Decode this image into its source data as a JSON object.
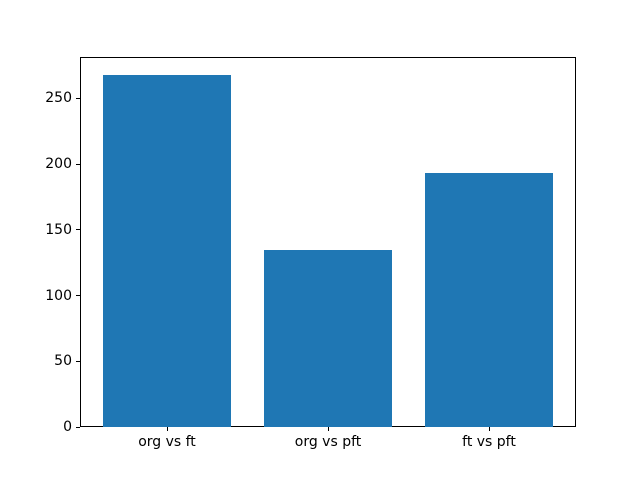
{
  "chart_data": {
    "type": "bar",
    "categories": [
      "org vs ft",
      "org vs pft",
      "ft vs pft"
    ],
    "values": [
      268,
      135,
      193
    ],
    "yticks": [
      0,
      50,
      100,
      150,
      200,
      250
    ],
    "ylim": [
      0,
      281.4
    ],
    "title": "",
    "xlabel": "",
    "ylabel": "",
    "grid": false,
    "legend": "none",
    "bar_color": "#1f77b4",
    "axes_color": "#000000",
    "background_color": "#ffffff"
  }
}
